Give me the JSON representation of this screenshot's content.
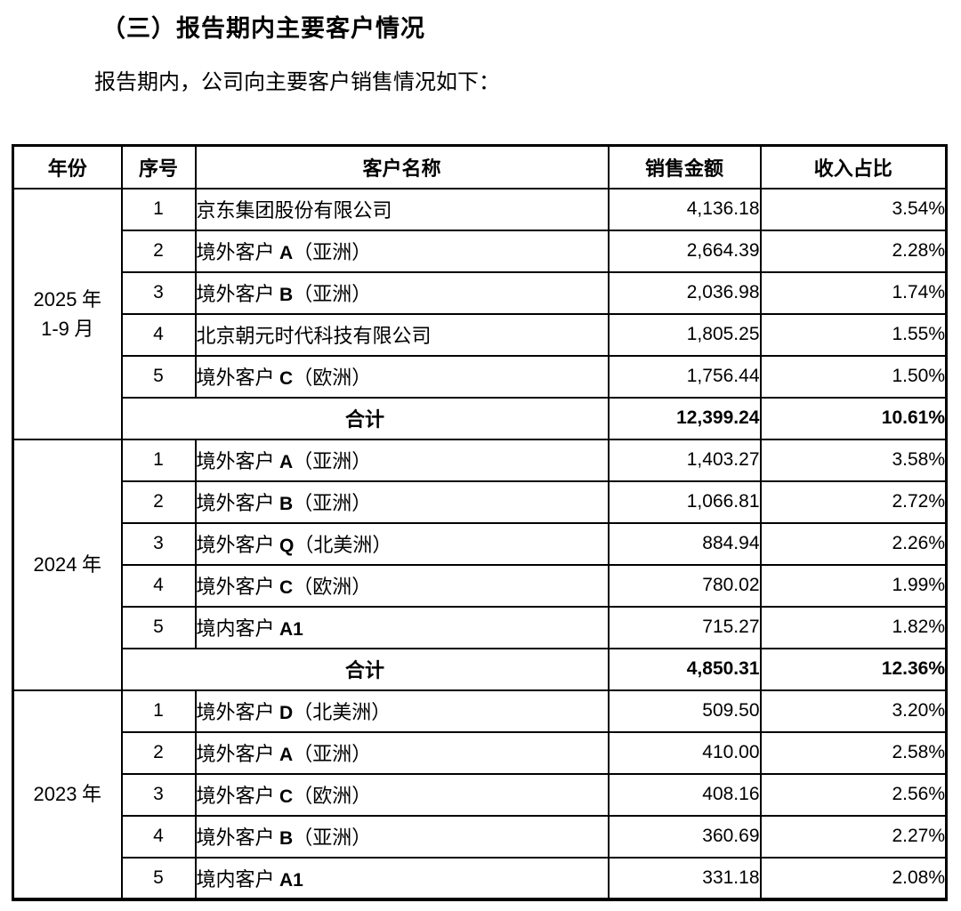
{
  "page": {
    "section_title": "（三）报告期内主要客户情况",
    "intro_text": "报告期内，公司向主要客户销售情况如下："
  },
  "table": {
    "headers": [
      "年份",
      "序号",
      "客户名称",
      "销售金额",
      "收入占比"
    ],
    "total_label": "合计",
    "sections": [
      {
        "year_lines": [
          "2025 年",
          "1-9 月"
        ],
        "rows": [
          {
            "no": "1",
            "name": "京东集团股份有限公司",
            "amount": "4,136.18",
            "share": "3.54%"
          },
          {
            "no": "2",
            "name": "境外客户 A（亚洲）",
            "amount": "2,664.39",
            "share": "2.28%"
          },
          {
            "no": "3",
            "name": "境外客户 B（亚洲）",
            "amount": "2,036.98",
            "share": "1.74%"
          },
          {
            "no": "4",
            "name": "北京朝元时代科技有限公司",
            "amount": "1,805.25",
            "share": "1.55%"
          },
          {
            "no": "5",
            "name": "境外客户 C（欧洲）",
            "amount": "1,756.44",
            "share": "1.50%"
          }
        ],
        "total": {
          "amount": "12,399.24",
          "share": "10.61%"
        }
      },
      {
        "year_lines": [
          "2024 年"
        ],
        "rows": [
          {
            "no": "1",
            "name": "境外客户 A（亚洲）",
            "amount": "1,403.27",
            "share": "3.58%"
          },
          {
            "no": "2",
            "name": "境外客户 B（亚洲）",
            "amount": "1,066.81",
            "share": "2.72%"
          },
          {
            "no": "3",
            "name": "境外客户 Q（北美洲）",
            "amount": "884.94",
            "share": "2.26%"
          },
          {
            "no": "4",
            "name": "境外客户 C（欧洲）",
            "amount": "780.02",
            "share": "1.99%"
          },
          {
            "no": "5",
            "name": "境内客户 A1",
            "amount": "715.27",
            "share": "1.82%"
          }
        ],
        "total": {
          "amount": "4,850.31",
          "share": "12.36%"
        }
      },
      {
        "year_lines": [
          "2023 年"
        ],
        "rows": [
          {
            "no": "1",
            "name": "境外客户 D（北美洲）",
            "amount": "509.50",
            "share": "3.20%"
          },
          {
            "no": "2",
            "name": "境外客户 A（亚洲）",
            "amount": "410.00",
            "share": "2.58%"
          },
          {
            "no": "3",
            "name": "境外客户 C（欧洲）",
            "amount": "408.16",
            "share": "2.56%"
          },
          {
            "no": "4",
            "name": "境外客户 B（亚洲）",
            "amount": "360.69",
            "share": "2.27%"
          },
          {
            "no": "5",
            "name": "境内客户 A1",
            "amount": "331.18",
            "share": "2.08%"
          }
        ],
        "total": null
      }
    ]
  }
}
